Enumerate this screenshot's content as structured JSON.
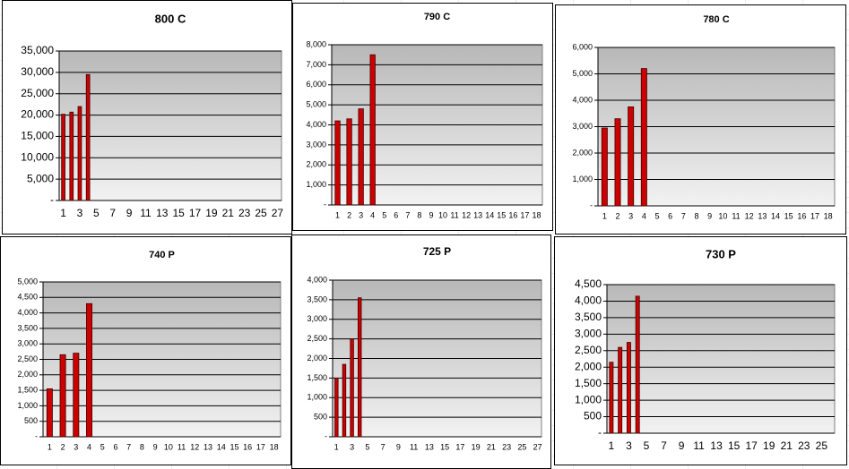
{
  "chart_data": [
    {
      "type": "bar",
      "title": "800 C",
      "color": "#cc0000",
      "grid": true,
      "categories": [
        1,
        null,
        3,
        null,
        5,
        null,
        7,
        null,
        9,
        null,
        11,
        null,
        13,
        null,
        15,
        null,
        17,
        null,
        19,
        null,
        21,
        null,
        23,
        null,
        25,
        null,
        27
      ],
      "values": [
        20200,
        20700,
        22000,
        29500,
        null,
        null,
        null,
        null,
        null,
        null,
        null,
        null,
        null,
        null,
        null,
        null,
        null,
        null,
        null,
        null,
        null,
        null,
        null,
        null,
        null,
        null,
        null
      ],
      "ylim": [
        0,
        35000
      ],
      "yticks": [
        {
          "value": 0,
          "label": "-"
        },
        {
          "value": 5000,
          "label": "5,000"
        },
        {
          "value": 10000,
          "label": "10,000"
        },
        {
          "value": 15000,
          "label": "15,000"
        },
        {
          "value": 20000,
          "label": "20,000"
        },
        {
          "value": 25000,
          "label": "25,000"
        },
        {
          "value": 30000,
          "label": "30,000"
        },
        {
          "value": 35000,
          "label": "35,000"
        }
      ]
    },
    {
      "type": "bar",
      "title": "790 C",
      "color": "#cc0000",
      "grid": true,
      "categories": [
        1,
        2,
        3,
        4,
        5,
        6,
        7,
        8,
        9,
        10,
        11,
        12,
        13,
        14,
        15,
        16,
        17,
        18
      ],
      "values": [
        4200,
        4300,
        4800,
        7500,
        null,
        null,
        null,
        null,
        null,
        null,
        null,
        null,
        null,
        null,
        null,
        null,
        null,
        null
      ],
      "ylim": [
        0,
        8000
      ],
      "yticks": [
        {
          "value": 0,
          "label": "-"
        },
        {
          "value": 1000,
          "label": "1,000"
        },
        {
          "value": 2000,
          "label": "2,000"
        },
        {
          "value": 3000,
          "label": "3,000"
        },
        {
          "value": 4000,
          "label": "4,000"
        },
        {
          "value": 5000,
          "label": "5,000"
        },
        {
          "value": 6000,
          "label": "6,000"
        },
        {
          "value": 7000,
          "label": "7,000"
        },
        {
          "value": 8000,
          "label": "8,000"
        }
      ]
    },
    {
      "type": "bar",
      "title": "780 C",
      "color": "#cc0000",
      "grid": true,
      "categories": [
        1,
        2,
        3,
        4,
        5,
        6,
        7,
        8,
        9,
        10,
        11,
        12,
        13,
        14,
        15,
        16,
        17,
        18
      ],
      "values": [
        2950,
        3300,
        3750,
        5200,
        null,
        null,
        null,
        null,
        null,
        null,
        null,
        null,
        null,
        null,
        null,
        null,
        null,
        null
      ],
      "ylim": [
        0,
        6000
      ],
      "yticks": [
        {
          "value": 0,
          "label": "-"
        },
        {
          "value": 1000,
          "label": "1,000"
        },
        {
          "value": 2000,
          "label": "2,000"
        },
        {
          "value": 3000,
          "label": "3,000"
        },
        {
          "value": 4000,
          "label": "4,000"
        },
        {
          "value": 5000,
          "label": "5,000"
        },
        {
          "value": 6000,
          "label": "6,000"
        }
      ]
    },
    {
      "type": "bar",
      "title": "740 P",
      "color": "#cc0000",
      "grid": true,
      "categories": [
        1,
        2,
        3,
        4,
        5,
        6,
        7,
        8,
        9,
        10,
        11,
        12,
        13,
        14,
        15,
        16,
        17,
        18
      ],
      "values": [
        1550,
        2650,
        2700,
        4300,
        null,
        null,
        null,
        null,
        null,
        null,
        null,
        null,
        null,
        null,
        null,
        null,
        null,
        null
      ],
      "ylim": [
        0,
        5000
      ],
      "yticks": [
        {
          "value": 0,
          "label": "-"
        },
        500,
        {
          "value": 1000,
          "label": "1,000"
        },
        {
          "value": 1500,
          "label": "1,500"
        },
        {
          "value": 2000,
          "label": "2,000"
        },
        {
          "value": 2500,
          "label": "2,500"
        },
        {
          "value": 3000,
          "label": "3,000"
        },
        {
          "value": 3500,
          "label": "3,500"
        },
        {
          "value": 4000,
          "label": "4,000"
        },
        {
          "value": 4500,
          "label": "4,500"
        },
        {
          "value": 5000,
          "label": "5,000"
        }
      ]
    },
    {
      "type": "bar",
      "title": "725 P",
      "color": "#cc0000",
      "grid": true,
      "categories": [
        1,
        null,
        3,
        null,
        5,
        null,
        7,
        null,
        9,
        null,
        11,
        null,
        13,
        null,
        15,
        null,
        17,
        null,
        19,
        null,
        21,
        null,
        23,
        null,
        25,
        null,
        27
      ],
      "values": [
        1500,
        1850,
        2500,
        3550,
        null,
        null,
        null,
        null,
        null,
        null,
        null,
        null,
        null,
        null,
        null,
        null,
        null,
        null,
        null,
        null,
        null,
        null,
        null,
        null,
        null,
        null,
        null
      ],
      "ylim": [
        0,
        4000
      ],
      "yticks": [
        {
          "value": 0,
          "label": "-"
        },
        500,
        {
          "value": 1000,
          "label": "1,000"
        },
        {
          "value": 1500,
          "label": "1,500"
        },
        {
          "value": 2000,
          "label": "2,000"
        },
        {
          "value": 2500,
          "label": "2,500"
        },
        {
          "value": 3000,
          "label": "3,000"
        },
        {
          "value": 3500,
          "label": "3,500"
        },
        {
          "value": 4000,
          "label": "4,000"
        }
      ]
    },
    {
      "type": "bar",
      "title": "730 P",
      "color": "#cc0000",
      "grid": true,
      "categories": [
        1,
        null,
        3,
        null,
        5,
        null,
        7,
        null,
        9,
        null,
        11,
        null,
        13,
        null,
        15,
        null,
        17,
        null,
        19,
        null,
        21,
        null,
        23,
        null,
        25,
        null
      ],
      "values": [
        2150,
        2600,
        2750,
        4150,
        null,
        null,
        null,
        null,
        null,
        null,
        null,
        null,
        null,
        null,
        null,
        null,
        null,
        null,
        null,
        null,
        null,
        null,
        null,
        null,
        null,
        null
      ],
      "ylim": [
        0,
        4500
      ],
      "yticks": [
        {
          "value": 0,
          "label": "-"
        },
        500,
        {
          "value": 1000,
          "label": "1,000"
        },
        {
          "value": 1500,
          "label": "1,500"
        },
        {
          "value": 2000,
          "label": "2,000"
        },
        {
          "value": 2500,
          "label": "2,500"
        },
        {
          "value": 3000,
          "label": "3,000"
        },
        {
          "value": 3500,
          "label": "3,500"
        },
        {
          "value": 4000,
          "label": "4,000"
        },
        {
          "value": 4500,
          "label": "4,500"
        }
      ]
    }
  ]
}
